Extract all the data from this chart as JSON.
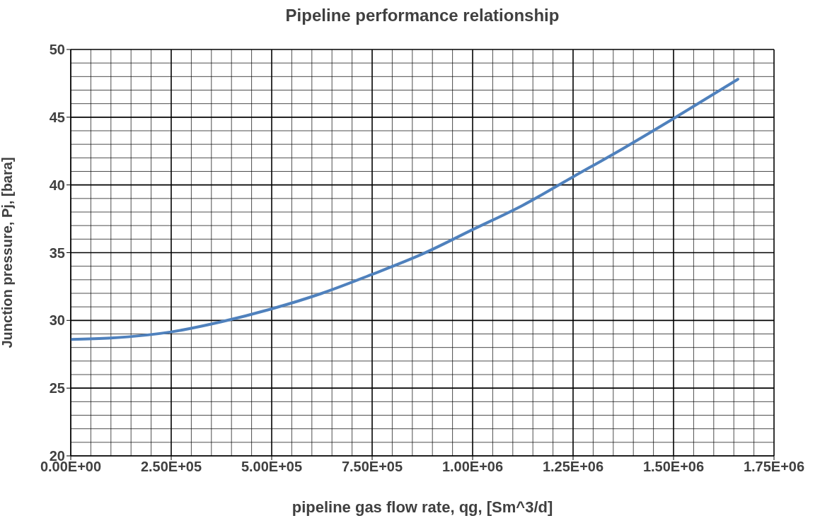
{
  "chart_data": {
    "type": "line",
    "title": "Pipeline performance relationship",
    "xlabel": "pipeline gas flow rate, qg,  [Sm^3/d]",
    "ylabel": "Junction pressure, Pj, [bara]",
    "x": [
      0,
      100000,
      250000,
      375000,
      500000,
      625000,
      750000,
      875000,
      1000000,
      1125000,
      1250000,
      1375000,
      1500000,
      1660000
    ],
    "series": [
      {
        "color": "#4f81bd",
        "values": [
          28.6,
          28.7,
          29.15,
          29.9,
          30.85,
          32.0,
          33.4,
          34.9,
          36.7,
          38.5,
          40.6,
          42.7,
          44.9,
          47.8
        ]
      }
    ],
    "xlim": [
      0,
      1750000
    ],
    "xticks": [
      {
        "value": 0,
        "label": "0.00E+00"
      },
      {
        "value": 250000,
        "label": "2.50E+05"
      },
      {
        "value": 500000,
        "label": "5.00E+05"
      },
      {
        "value": 750000,
        "label": "7.50E+05"
      },
      {
        "value": 1000000,
        "label": "1.00E+06"
      },
      {
        "value": 1250000,
        "label": "1.25E+06"
      },
      {
        "value": 1500000,
        "label": "1.50E+06"
      },
      {
        "value": 1750000,
        "label": "1.75E+06"
      }
    ],
    "ylim": [
      20,
      50
    ],
    "yticks": [
      20,
      25,
      30,
      35,
      40,
      45,
      50
    ],
    "grid": true,
    "marker": "none",
    "line_style": "solid"
  }
}
